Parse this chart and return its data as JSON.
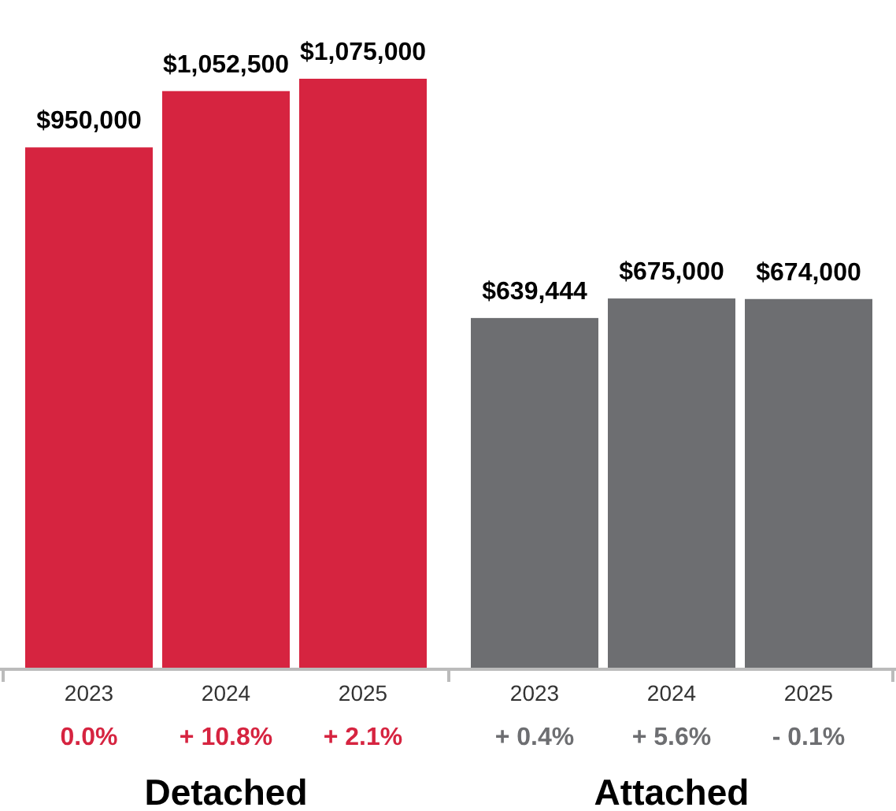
{
  "chart_data": {
    "type": "bar",
    "categories": [
      "2023",
      "2024",
      "2025",
      "2023",
      "2024",
      "2025"
    ],
    "series": [
      {
        "name": "Detached",
        "color": "#d62440",
        "values": [
          950000,
          1052500,
          1075000,
          null,
          null,
          null
        ],
        "value_labels": [
          "$950,000",
          "$1,052,500",
          "$1,075,000",
          null,
          null,
          null
        ]
      },
      {
        "name": "Attached",
        "color": "#6d6e71",
        "values": [
          null,
          null,
          null,
          639444,
          675000,
          674000
        ],
        "value_labels": [
          null,
          null,
          null,
          "$639,444",
          "$675,000",
          "$674,000"
        ]
      }
    ],
    "annotations": [
      "0.0%",
      "+ 10.8%",
      "+ 2.1%",
      "+ 0.4%",
      "+ 5.6%",
      "- 0.1%"
    ]
  }
}
